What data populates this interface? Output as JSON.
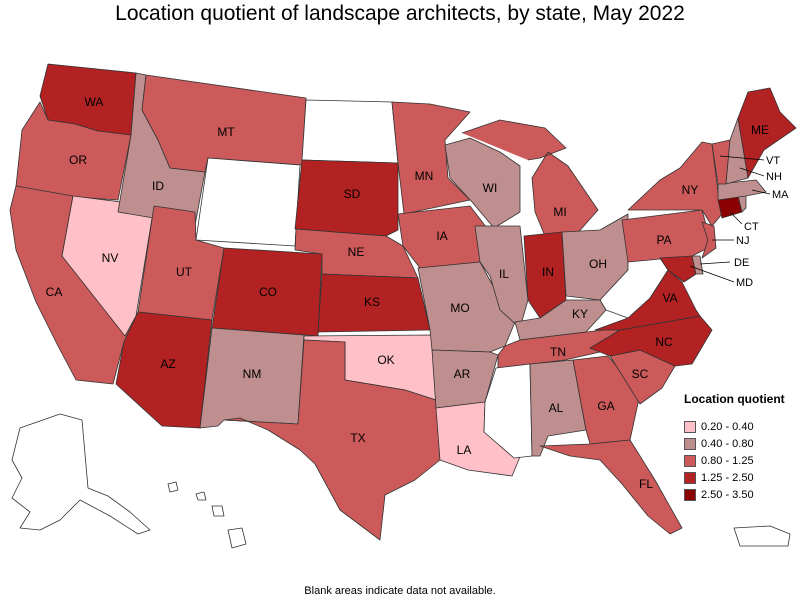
{
  "title": "Location quotient of landscape architects, by state, May 2022",
  "footnote": "Blank areas indicate data not available.",
  "legend": {
    "title": "Location quotient",
    "items": [
      {
        "label": "0.20 - 0.40",
        "color": "#ffc0c8"
      },
      {
        "label": "0.40 - 0.80",
        "color": "#bf8e8e"
      },
      {
        "label": "0.80 - 1.25",
        "color": "#cc5a5a"
      },
      {
        "label": "1.25 - 2.50",
        "color": "#b22222"
      },
      {
        "label": "2.50 - 3.50",
        "color": "#8b0000"
      }
    ]
  },
  "colors": {
    "no_data": "#ffffff",
    "border": "#333333"
  },
  "states": {
    "WA": {
      "label": "WA",
      "class": "1.25 - 2.50"
    },
    "OR": {
      "label": "OR",
      "class": "0.80 - 1.25"
    },
    "CA": {
      "label": "CA",
      "class": "0.80 - 1.25"
    },
    "NV": {
      "label": "NV",
      "class": "0.20 - 0.40"
    },
    "ID": {
      "label": "ID",
      "class": "0.40 - 0.80"
    },
    "MT": {
      "label": "MT",
      "class": "0.80 - 1.25"
    },
    "WY": {
      "label": "",
      "class": "no data"
    },
    "UT": {
      "label": "UT",
      "class": "0.80 - 1.25"
    },
    "AZ": {
      "label": "AZ",
      "class": "1.25 - 2.50"
    },
    "CO": {
      "label": "CO",
      "class": "1.25 - 2.50"
    },
    "NM": {
      "label": "NM",
      "class": "0.40 - 0.80"
    },
    "ND": {
      "label": "",
      "class": "no data"
    },
    "SD": {
      "label": "SD",
      "class": "1.25 - 2.50"
    },
    "NE": {
      "label": "NE",
      "class": "0.80 - 1.25"
    },
    "KS": {
      "label": "KS",
      "class": "1.25 - 2.50"
    },
    "OK": {
      "label": "OK",
      "class": "0.20 - 0.40"
    },
    "TX": {
      "label": "TX",
      "class": "0.80 - 1.25"
    },
    "MN": {
      "label": "MN",
      "class": "0.80 - 1.25"
    },
    "IA": {
      "label": "IA",
      "class": "0.80 - 1.25"
    },
    "MO": {
      "label": "MO",
      "class": "0.40 - 0.80"
    },
    "AR": {
      "label": "AR",
      "class": "0.40 - 0.80"
    },
    "LA": {
      "label": "LA",
      "class": "0.20 - 0.40"
    },
    "WI": {
      "label": "WI",
      "class": "0.40 - 0.80"
    },
    "IL": {
      "label": "IL",
      "class": "0.40 - 0.80"
    },
    "MI": {
      "label": "MI",
      "class": "0.80 - 1.25"
    },
    "IN": {
      "label": "IN",
      "class": "1.25 - 2.50"
    },
    "OH": {
      "label": "OH",
      "class": "0.40 - 0.80"
    },
    "KY": {
      "label": "KY",
      "class": "0.40 - 0.80"
    },
    "TN": {
      "label": "TN",
      "class": "0.80 - 1.25"
    },
    "MS": {
      "label": "",
      "class": "no data"
    },
    "AL": {
      "label": "AL",
      "class": "0.40 - 0.80"
    },
    "GA": {
      "label": "GA",
      "class": "0.80 - 1.25"
    },
    "FL": {
      "label": "FL",
      "class": "0.80 - 1.25"
    },
    "SC": {
      "label": "SC",
      "class": "0.80 - 1.25"
    },
    "NC": {
      "label": "NC",
      "class": "1.25 - 2.50"
    },
    "VA": {
      "label": "VA",
      "class": "1.25 - 2.50"
    },
    "WV": {
      "label": "",
      "class": "no data"
    },
    "MD": {
      "label": "MD",
      "class": "1.25 - 2.50"
    },
    "DE": {
      "label": "DE",
      "class": "0.40 - 0.80"
    },
    "PA": {
      "label": "PA",
      "class": "0.80 - 1.25"
    },
    "NJ": {
      "label": "NJ",
      "class": "0.80 - 1.25"
    },
    "NY": {
      "label": "NY",
      "class": "0.80 - 1.25"
    },
    "CT": {
      "label": "CT",
      "class": "2.50 - 3.50"
    },
    "MA": {
      "label": "MA",
      "class": "0.40 - 0.80"
    },
    "VT": {
      "label": "VT",
      "class": "0.80 - 1.25"
    },
    "NH": {
      "label": "NH",
      "class": "0.40 - 0.80"
    },
    "RI": {
      "label": "",
      "class": "0.40 - 0.80"
    },
    "ME": {
      "label": "ME",
      "class": "1.25 - 2.50"
    },
    "AK": {
      "label": "",
      "class": "no data"
    },
    "HI": {
      "label": "",
      "class": "no data"
    },
    "PR": {
      "label": "",
      "class": "no data"
    }
  }
}
